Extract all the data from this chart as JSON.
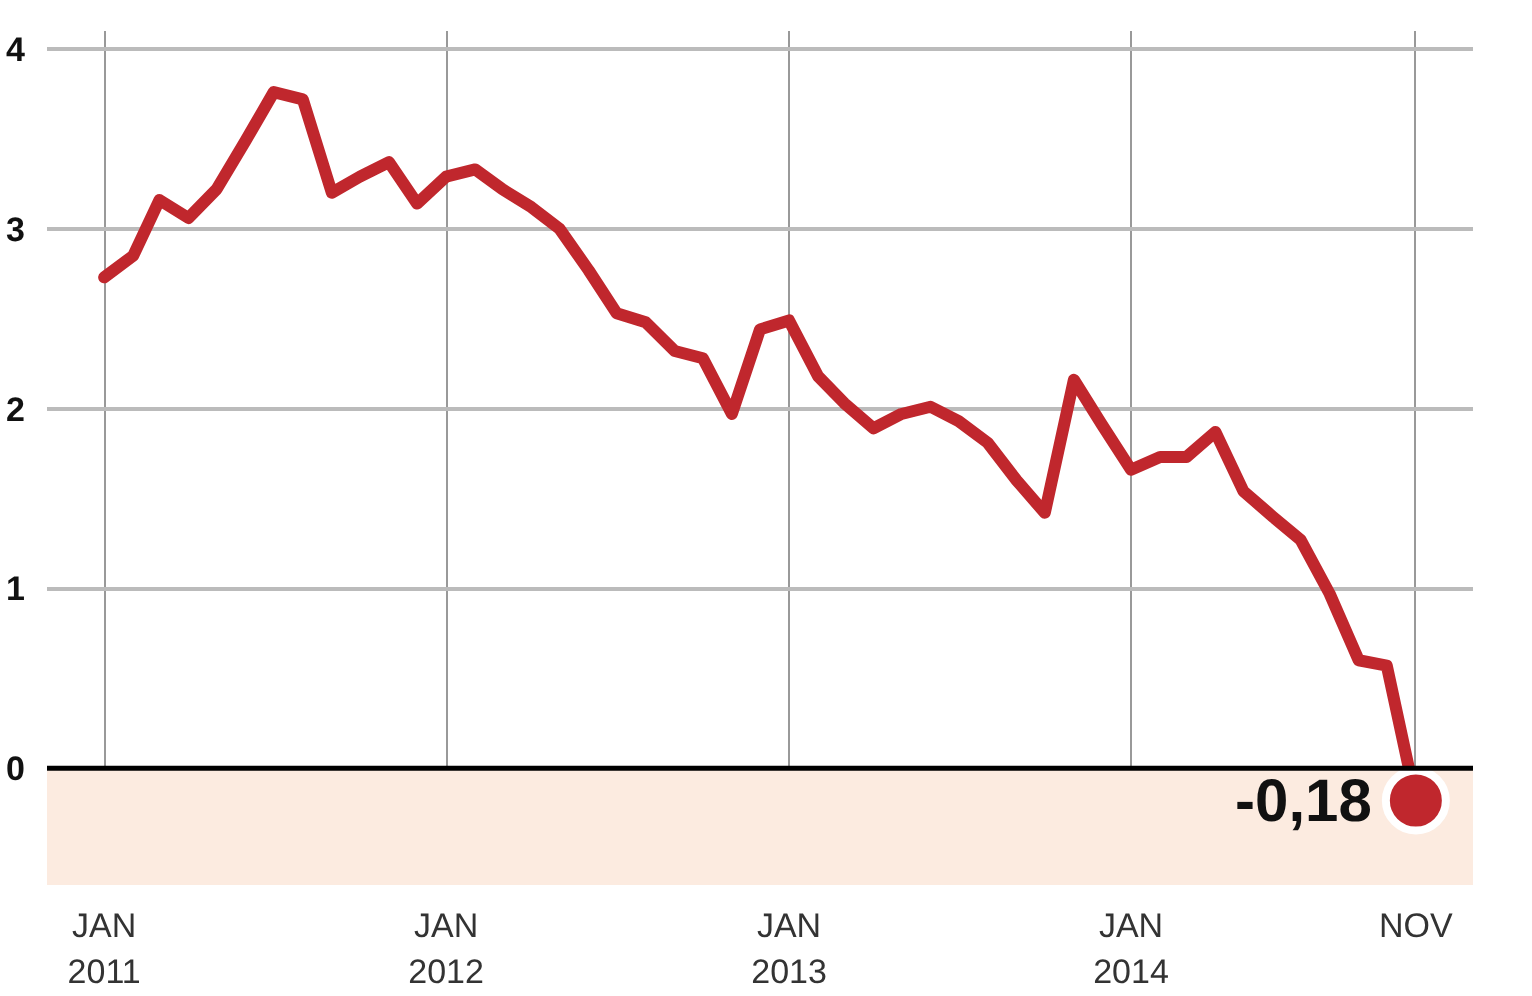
{
  "chart_data": {
    "type": "line",
    "x": [
      "2011-01",
      "2011-02",
      "2011-03",
      "2011-04",
      "2011-05",
      "2011-06",
      "2011-07",
      "2011-08",
      "2011-09",
      "2011-10",
      "2011-11",
      "2011-12",
      "2012-01",
      "2012-02",
      "2012-03",
      "2012-04",
      "2012-05",
      "2012-06",
      "2012-07",
      "2012-08",
      "2012-09",
      "2012-10",
      "2012-11",
      "2012-12",
      "2013-01",
      "2013-02",
      "2013-03",
      "2013-04",
      "2013-05",
      "2013-06",
      "2013-07",
      "2013-08",
      "2013-09",
      "2013-10",
      "2013-11",
      "2013-12",
      "2014-01",
      "2014-02",
      "2014-03",
      "2014-04",
      "2014-05",
      "2014-06",
      "2014-07",
      "2014-08",
      "2014-09",
      "2014-10",
      "2014-11"
    ],
    "series": [
      {
        "color": "#c0272d",
        "values": [
          2.73,
          2.85,
          3.16,
          3.06,
          3.22,
          3.49,
          3.76,
          3.72,
          3.2,
          3.29,
          3.37,
          3.14,
          3.29,
          3.33,
          3.22,
          3.12,
          3.0,
          2.77,
          2.53,
          2.48,
          2.32,
          2.28,
          1.97,
          2.44,
          2.49,
          2.18,
          2.03,
          1.89,
          1.97,
          2.01,
          1.93,
          1.81,
          1.6,
          1.42,
          2.16,
          1.91,
          1.66,
          1.73,
          1.73,
          1.87,
          1.54,
          1.4,
          1.27,
          0.97,
          0.6,
          0.57,
          -0.18
        ]
      },
      {
        "type": "scatter",
        "marker": "circle",
        "color": "#c0272d",
        "x": [
          "2014-11"
        ],
        "values": [
          -0.18
        ],
        "value_labels": [
          "-0,18"
        ]
      }
    ],
    "xlim": [
      "2010-11",
      "2015-01"
    ],
    "xticks": [
      {
        "value": "2011-01",
        "label": "JAN\n2011"
      },
      {
        "value": "2012-01",
        "label": "JAN\n2012"
      },
      {
        "value": "2013-01",
        "label": "JAN\n2013"
      },
      {
        "value": "2014-01",
        "label": "JAN\n2014"
      },
      {
        "value": "2014-11",
        "label": "NOV"
      }
    ],
    "ylim": [
      -0.65,
      4.1
    ],
    "yticks": [
      0,
      1,
      2,
      3,
      4
    ],
    "grid": true,
    "marker": "none",
    "line_style": "solid",
    "ref_lines": [
      {
        "axis": "y",
        "value": 0,
        "color": "#000000"
      }
    ],
    "bands": [
      {
        "axis": "y",
        "from": -0.65,
        "to": 0,
        "color": "#fcebe0"
      }
    ]
  }
}
